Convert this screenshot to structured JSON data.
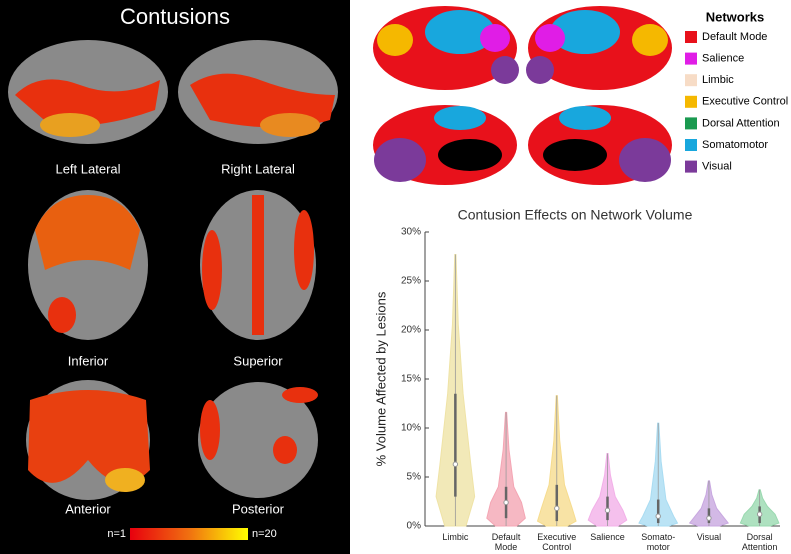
{
  "contusion_figure": {
    "title": "Contusions",
    "views": [
      "Left Lateral",
      "Right Lateral",
      "Inferior",
      "Superior",
      "Anterior",
      "Posterior"
    ],
    "colorbar_labels": [
      "n=1",
      "n=20"
    ]
  },
  "networks_legend": {
    "title": "Networks",
    "items": [
      {
        "name": "Default Mode",
        "color": "#e8111b"
      },
      {
        "name": "Salience",
        "color": "#e01de6"
      },
      {
        "name": "Limbic",
        "color": "#f7dcc6"
      },
      {
        "name": "Executive Control",
        "color": "#f5b800"
      },
      {
        "name": "Dorsal Attention",
        "color": "#1a9a50"
      },
      {
        "name": "Somatomotor",
        "color": "#18a7dd"
      },
      {
        "name": "Visual",
        "color": "#7b3a9a"
      }
    ]
  },
  "chart_data": {
    "type": "violin",
    "title": "Contusion Effects on Network Volume",
    "y_label": "% Volume Affected by Lesions",
    "categories": [
      "Limbic",
      "Default\nMode",
      "Executive\nControl",
      "Salience",
      "Somato-\nmotor",
      "Visual",
      "Dorsal\nAttention"
    ],
    "colors": [
      "#efe3a6",
      "#f4a6b4",
      "#f6dc8f",
      "#f2b0e8",
      "#a9dcf2",
      "#c8a8e0",
      "#9ad9b0"
    ],
    "min": [
      0,
      0,
      0,
      0,
      0,
      0,
      0
    ],
    "q1": [
      3,
      0.8,
      0.5,
      0.6,
      0.3,
      0.3,
      0.3
    ],
    "median": [
      6.3,
      2.4,
      1.8,
      1.6,
      1,
      0.8,
      1.2
    ],
    "q3": [
      13.5,
      4,
      4.2,
      3,
      2.7,
      1.8,
      2
    ],
    "max": [
      27.7,
      11.6,
      13.3,
      7.4,
      10.5,
      4.6,
      3.7
    ],
    "ylim": [
      0,
      30
    ],
    "yticks": [
      {
        "value": 0,
        "label": "0%"
      },
      {
        "value": 5,
        "label": "5%"
      },
      {
        "value": 10,
        "label": "10%"
      },
      {
        "value": 15,
        "label": "15%"
      },
      {
        "value": 20,
        "label": "20%"
      },
      {
        "value": 25,
        "label": "25%"
      },
      {
        "value": 30,
        "label": "30%"
      }
    ]
  }
}
